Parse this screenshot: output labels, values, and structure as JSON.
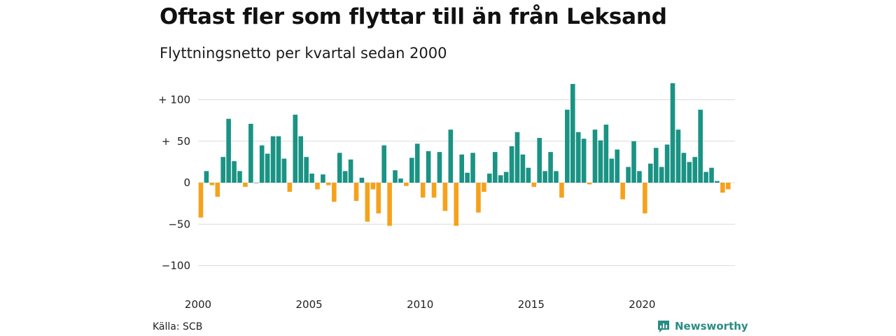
{
  "title": "Oftast fler som flyttar till än från Leksand",
  "subtitle": "Flyttningsnetto per kvartal sedan 2000",
  "source": "Källa: SCB",
  "brand": "Newsworthy",
  "colors": {
    "positive": "#1a9384",
    "negative": "#f5a21b",
    "grid": "#dcdcdc",
    "brand": "#2a8c82"
  },
  "chart_data": {
    "type": "bar",
    "x_start": "2000 Q1",
    "x_ticks": [
      "2000",
      "2005",
      "2010",
      "2015",
      "2020"
    ],
    "y_ticks": [
      "+ 100",
      "+  50",
      "0",
      "−50",
      "−100"
    ],
    "y_tick_values": [
      100,
      50,
      0,
      -50,
      -100
    ],
    "ylim": [
      -110,
      120
    ],
    "grid": true,
    "values": [
      -42,
      14,
      -3,
      -17,
      31,
      77,
      26,
      14,
      -5,
      71,
      0,
      45,
      35,
      56,
      56,
      29,
      -11,
      82,
      56,
      31,
      11,
      -8,
      10,
      -3,
      -23,
      36,
      14,
      28,
      -22,
      6,
      -47,
      -8,
      -37,
      45,
      -52,
      15,
      5,
      -4,
      30,
      47,
      -18,
      38,
      -18,
      37,
      -34,
      64,
      -52,
      34,
      12,
      36,
      -36,
      -11,
      11,
      37,
      9,
      13,
      44,
      61,
      34,
      18,
      -5,
      54,
      14,
      37,
      14,
      -18,
      88,
      119,
      61,
      53,
      -2,
      64,
      51,
      70,
      29,
      40,
      -20,
      19,
      50,
      14,
      -37,
      23,
      42,
      19,
      46,
      120,
      64,
      36,
      25,
      31,
      88,
      13,
      18,
      2,
      -12,
      -8
    ]
  }
}
